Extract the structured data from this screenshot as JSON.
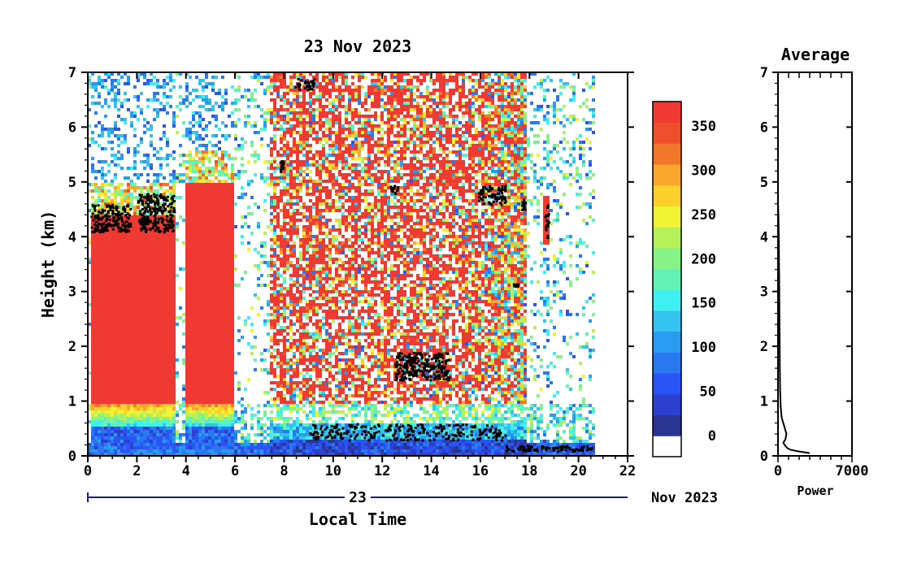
{
  "chart_data": [
    {
      "type": "heatmap",
      "title": "23 Nov 2023",
      "xlabel": "Local Time",
      "ylabel": "Height (km)",
      "xlim": [
        0,
        22
      ],
      "ylim": [
        0,
        7
      ],
      "x_ticks": [
        "0",
        "2",
        "4",
        "6",
        "8",
        "10",
        "12",
        "14",
        "16",
        "18",
        "20",
        "22"
      ],
      "y_ticks": [
        "0",
        "1",
        "2",
        "3",
        "4",
        "5",
        "6",
        "7"
      ],
      "date_axis": {
        "day_label": "23",
        "month_label": "Nov 2023"
      },
      "colorbar": {
        "tick_labels": [
          "0",
          "50",
          "100",
          "150",
          "200",
          "250",
          "300",
          "350"
        ],
        "colors": [
          "#ffffff",
          "#2a3591",
          "#2c3fcf",
          "#2b54f6",
          "#2a78f0",
          "#2a9cf0",
          "#33c3ee",
          "#3ff0f3",
          "#62f2b8",
          "#86f287",
          "#b8f05a",
          "#f0f333",
          "#fbd02a",
          "#f7a72c",
          "#f1772a",
          "#f04f2e",
          "#ee3a32"
        ]
      },
      "scenes": [
        {
          "x": [
            0.05,
            1.75
          ],
          "description": "cloud base ~4.3 km, strong backscatter 1–4.3 km"
        },
        {
          "x": [
            1.85,
            3.55
          ],
          "description": "cloud base ~4.3 km"
        },
        {
          "x": [
            3.85,
            5.95
          ],
          "description": "strong backscatter up to ~5 km"
        },
        {
          "x": [
            7.3,
            17.8
          ],
          "description": "noisy high backscatter, boundary layer ~0.3–0.6 km"
        },
        {
          "x": [
            18.5,
            18.75
          ],
          "description": "cloud ~4–4.7 km"
        }
      ],
      "cloud_detections": [
        {
          "x": [
            0.1,
            1.7
          ],
          "y": [
            4.1,
            4.6
          ]
        },
        {
          "x": [
            2.0,
            3.5
          ],
          "y": [
            4.1,
            4.8
          ]
        },
        {
          "x": [
            8.4,
            9.2
          ],
          "y": [
            6.7,
            6.9
          ]
        },
        {
          "x": [
            7.8,
            7.95
          ],
          "y": [
            5.2,
            5.4
          ]
        },
        {
          "x": [
            12.3,
            12.6
          ],
          "y": [
            4.8,
            4.95
          ]
        },
        {
          "x": [
            12.5,
            14.7
          ],
          "y": [
            1.4,
            1.9
          ]
        },
        {
          "x": [
            15.9,
            17.0
          ],
          "y": [
            4.6,
            4.95
          ]
        },
        {
          "x": [
            17.3,
            17.5
          ],
          "y": [
            3.1,
            3.15
          ]
        },
        {
          "x": [
            17.65,
            17.8
          ],
          "y": [
            4.5,
            4.7
          ]
        },
        {
          "x": [
            18.6,
            18.75
          ],
          "y": [
            4.0,
            4.6
          ]
        },
        {
          "x": [
            9.0,
            17.0
          ],
          "y": [
            0.3,
            0.6
          ]
        },
        {
          "x": [
            16.9,
            20.5
          ],
          "y": [
            0.1,
            0.2
          ]
        }
      ]
    },
    {
      "type": "line",
      "title": "Average",
      "xlabel": "Power",
      "ylabel": "",
      "xlim": [
        0,
        7000
      ],
      "ylim": [
        0,
        7
      ],
      "x_ticks": [
        "0",
        "7000"
      ],
      "y_ticks": [
        "0",
        "1",
        "2",
        "3",
        "4",
        "5",
        "6",
        "7"
      ],
      "series": [
        {
          "x": [
            3000,
            2000,
            1200,
            900,
            700,
            500,
            700,
            800,
            650,
            500,
            350,
            250,
            200,
            180,
            160,
            140,
            120,
            100,
            80,
            40,
            0,
            0,
            0,
            0,
            0
          ],
          "y": [
            0.05,
            0.08,
            0.11,
            0.14,
            0.18,
            0.24,
            0.3,
            0.4,
            0.5,
            0.6,
            0.7,
            0.9,
            1.2,
            1.6,
            2.0,
            2.5,
            3.0,
            3.5,
            4.0,
            4.4,
            4.6,
            5.0,
            5.5,
            6.0,
            7.0
          ]
        }
      ]
    }
  ]
}
